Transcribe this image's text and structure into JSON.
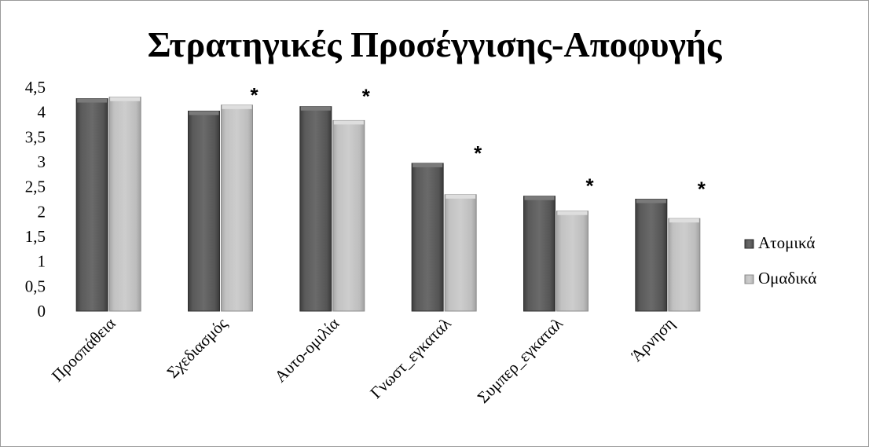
{
  "chart_data": {
    "type": "bar",
    "title": "Στρατηγικές Προσέγγισης-Αποφυγής",
    "categories": [
      "Προσπάθεια",
      "Σχεδιασμός",
      "Αυτο-ομιλία",
      "Γνωστ_εγκαταλ",
      "Συμπερ_εγκαταλ",
      "Άρνηση"
    ],
    "series": [
      {
        "name": "Ατομικά",
        "color": "#555555",
        "values": [
          4.27,
          4.02,
          4.11,
          2.97,
          2.31,
          2.25
        ]
      },
      {
        "name": "Ομαδικά",
        "color": "#b8b8b8",
        "values": [
          4.3,
          4.14,
          3.83,
          2.34,
          2.01,
          1.86
        ]
      }
    ],
    "y_ticks": [
      "0",
      "0,5",
      "1",
      "1,5",
      "2",
      "2,5",
      "3",
      "3,5",
      "4",
      "4,5"
    ],
    "ylim": [
      0,
      4.5
    ],
    "significance_marker": "*",
    "significant_categories": [
      1,
      2,
      3,
      4,
      5
    ],
    "legend_position": "right",
    "grid": false,
    "xlabel": "",
    "ylabel": ""
  }
}
